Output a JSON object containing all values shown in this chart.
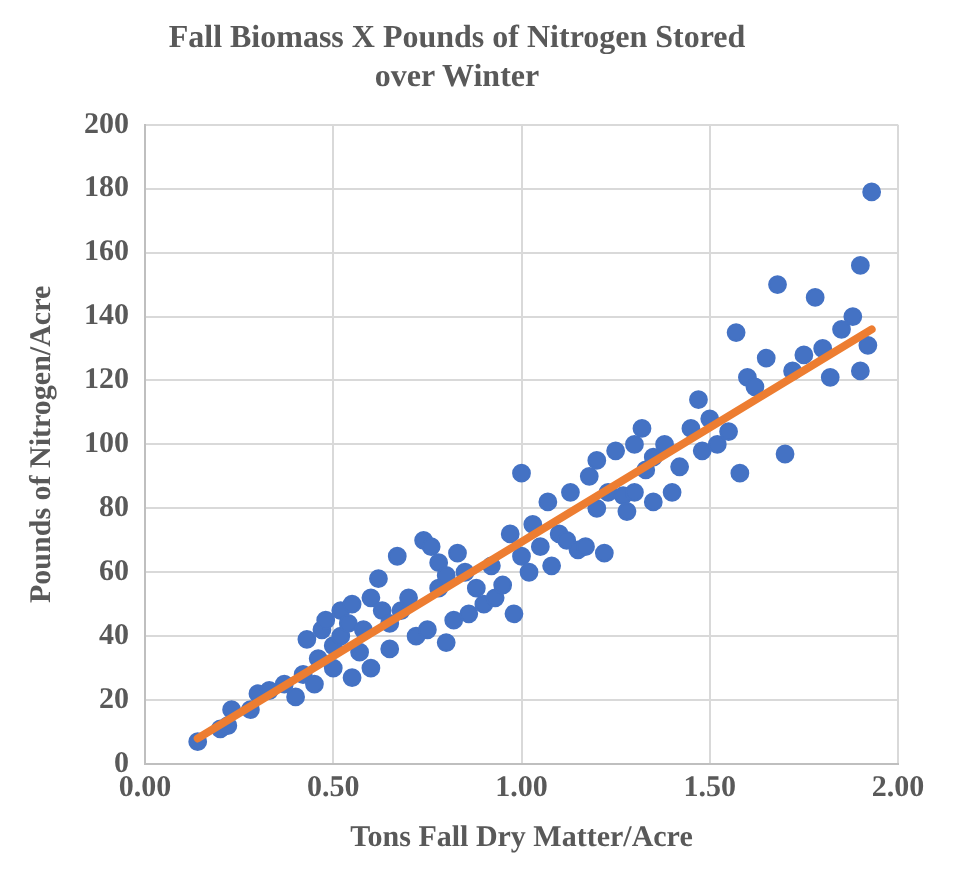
{
  "chart_data": {
    "type": "scatter",
    "title": "Fall Biomass X Pounds of Nitrogen Stored over Winter",
    "xlabel": "Tons Fall Dry Matter/Acre",
    "ylabel": "Pounds of Nitrogen/Acre",
    "xlim": [
      0,
      2
    ],
    "xticks": [
      {
        "value": 0,
        "label": "0.00"
      },
      {
        "value": 0.5,
        "label": "0.50"
      },
      {
        "value": 1,
        "label": "1.00"
      },
      {
        "value": 1.5,
        "label": "1.50"
      },
      {
        "value": 2,
        "label": "2.00"
      }
    ],
    "ylim": [
      0,
      200
    ],
    "yticks": [
      0,
      20,
      40,
      60,
      80,
      100,
      120,
      140,
      160,
      180,
      200
    ],
    "grid": true,
    "legend": false,
    "marker": "circle",
    "series": [
      {
        "color": "#4472c4",
        "x": [
          0.14,
          0.2,
          0.22,
          0.23,
          0.28,
          0.3,
          0.33,
          0.37,
          0.4,
          0.42,
          0.43,
          0.45,
          0.46,
          0.47,
          0.48,
          0.5,
          0.5,
          0.52,
          0.52,
          0.54,
          0.55,
          0.55,
          0.57,
          0.58,
          0.6,
          0.6,
          0.62,
          0.63,
          0.65,
          0.65,
          0.67,
          0.68,
          0.7,
          0.72,
          0.74,
          0.75,
          0.76,
          0.78,
          0.78,
          0.8,
          0.8,
          0.82,
          0.83,
          0.85,
          0.86,
          0.88,
          0.9,
          0.92,
          0.93,
          0.95,
          0.97,
          0.98,
          1.0,
          1.0,
          1.02,
          1.03,
          1.05,
          1.07,
          1.08,
          1.1,
          1.12,
          1.13,
          1.15,
          1.17,
          1.18,
          1.2,
          1.2,
          1.22,
          1.23,
          1.25,
          1.27,
          1.28,
          1.3,
          1.3,
          1.32,
          1.33,
          1.35,
          1.35,
          1.38,
          1.4,
          1.42,
          1.45,
          1.47,
          1.48,
          1.5,
          1.52,
          1.55,
          1.57,
          1.58,
          1.6,
          1.62,
          1.65,
          1.68,
          1.7,
          1.72,
          1.75,
          1.78,
          1.8,
          1.82,
          1.85,
          1.88,
          1.9,
          1.9,
          1.92,
          1.93
        ],
        "values": [
          7,
          11,
          12,
          17,
          17,
          22,
          23,
          25,
          21,
          28,
          39,
          25,
          33,
          42,
          45,
          30,
          37,
          40,
          48,
          44,
          27,
          50,
          35,
          42,
          30,
          52,
          58,
          48,
          36,
          44,
          65,
          48,
          52,
          40,
          70,
          42,
          68,
          55,
          63,
          38,
          59,
          45,
          66,
          60,
          47,
          55,
          50,
          62,
          52,
          56,
          72,
          47,
          91,
          65,
          60,
          75,
          68,
          82,
          62,
          72,
          70,
          85,
          67,
          68,
          90,
          80,
          95,
          66,
          85,
          98,
          84,
          79,
          100,
          85,
          105,
          92,
          96,
          82,
          100,
          85,
          93,
          105,
          114,
          98,
          108,
          100,
          104,
          135,
          91,
          121,
          118,
          127,
          150,
          97,
          123,
          128,
          146,
          130,
          121,
          136,
          140,
          123,
          156,
          131,
          179
        ]
      },
      {
        "type": "line",
        "color": "#ed7d31",
        "x": [
          0.14,
          1.93
        ],
        "values": [
          8,
          136
        ],
        "marker": "none"
      }
    ]
  }
}
